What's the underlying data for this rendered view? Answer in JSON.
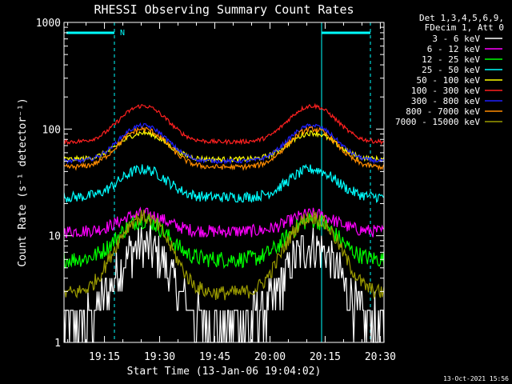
{
  "chart_data": {
    "type": "line",
    "title": "RHESSI Observing Summary Count Rates",
    "xlabel": "Start Time (13-Jan-06 19:04:02)",
    "ylabel": "Count Rate (s⁻¹ detector⁻¹)",
    "y_scale": "log",
    "ylim": [
      1,
      1000
    ],
    "xlim_min": [
      0,
      87
    ],
    "x_ticks": [
      {
        "min": 11,
        "label": "19:15"
      },
      {
        "min": 26,
        "label": "19:30"
      },
      {
        "min": 41,
        "label": "19:45"
      },
      {
        "min": 56,
        "label": "20:00"
      },
      {
        "min": 71,
        "label": "20:15"
      },
      {
        "min": 86,
        "label": "20:30"
      }
    ],
    "y_ticks": [
      {
        "value": 1,
        "label": "1"
      },
      {
        "value": 10,
        "label": "10"
      },
      {
        "value": 100,
        "label": "100"
      },
      {
        "value": 1000,
        "label": "1000"
      }
    ],
    "legend_header": [
      "Det 1,3,4,5,6,9,",
      "FDecim 1, Att 0"
    ],
    "legend_position": "top-right, outside plot",
    "annotations": {
      "night_marker_label": "N",
      "timestamp": "13-Oct-2021 15:56"
    },
    "series": [
      {
        "name": "3 - 6 keV",
        "color": "#ffffff",
        "baseline": 1.5,
        "peak": 8
      },
      {
        "name": "6 - 12 keV",
        "color": "#ff00ff",
        "baseline": 11,
        "peak": 16
      },
      {
        "name": "12 - 25 keV",
        "color": "#00ff00",
        "baseline": 6,
        "peak": 14
      },
      {
        "name": "25 - 50 keV",
        "color": "#00ffff",
        "baseline": 23,
        "peak": 42
      },
      {
        "name": "50 - 100 keV",
        "color": "#ffff00",
        "baseline": 52,
        "peak": 92
      },
      {
        "name": "100 - 300 keV",
        "color": "#ff2020",
        "baseline": 76,
        "peak": 165
      },
      {
        "name": "300 - 800 keV",
        "color": "#2020ff",
        "baseline": 50,
        "peak": 108
      },
      {
        "name": "800 - 7000 keV",
        "color": "#ff8c00",
        "baseline": 44,
        "peak": 100
      },
      {
        "name": "7000 - 15000 keV",
        "color": "#9a9a00",
        "baseline": 2.9,
        "peak": 15
      }
    ]
  }
}
